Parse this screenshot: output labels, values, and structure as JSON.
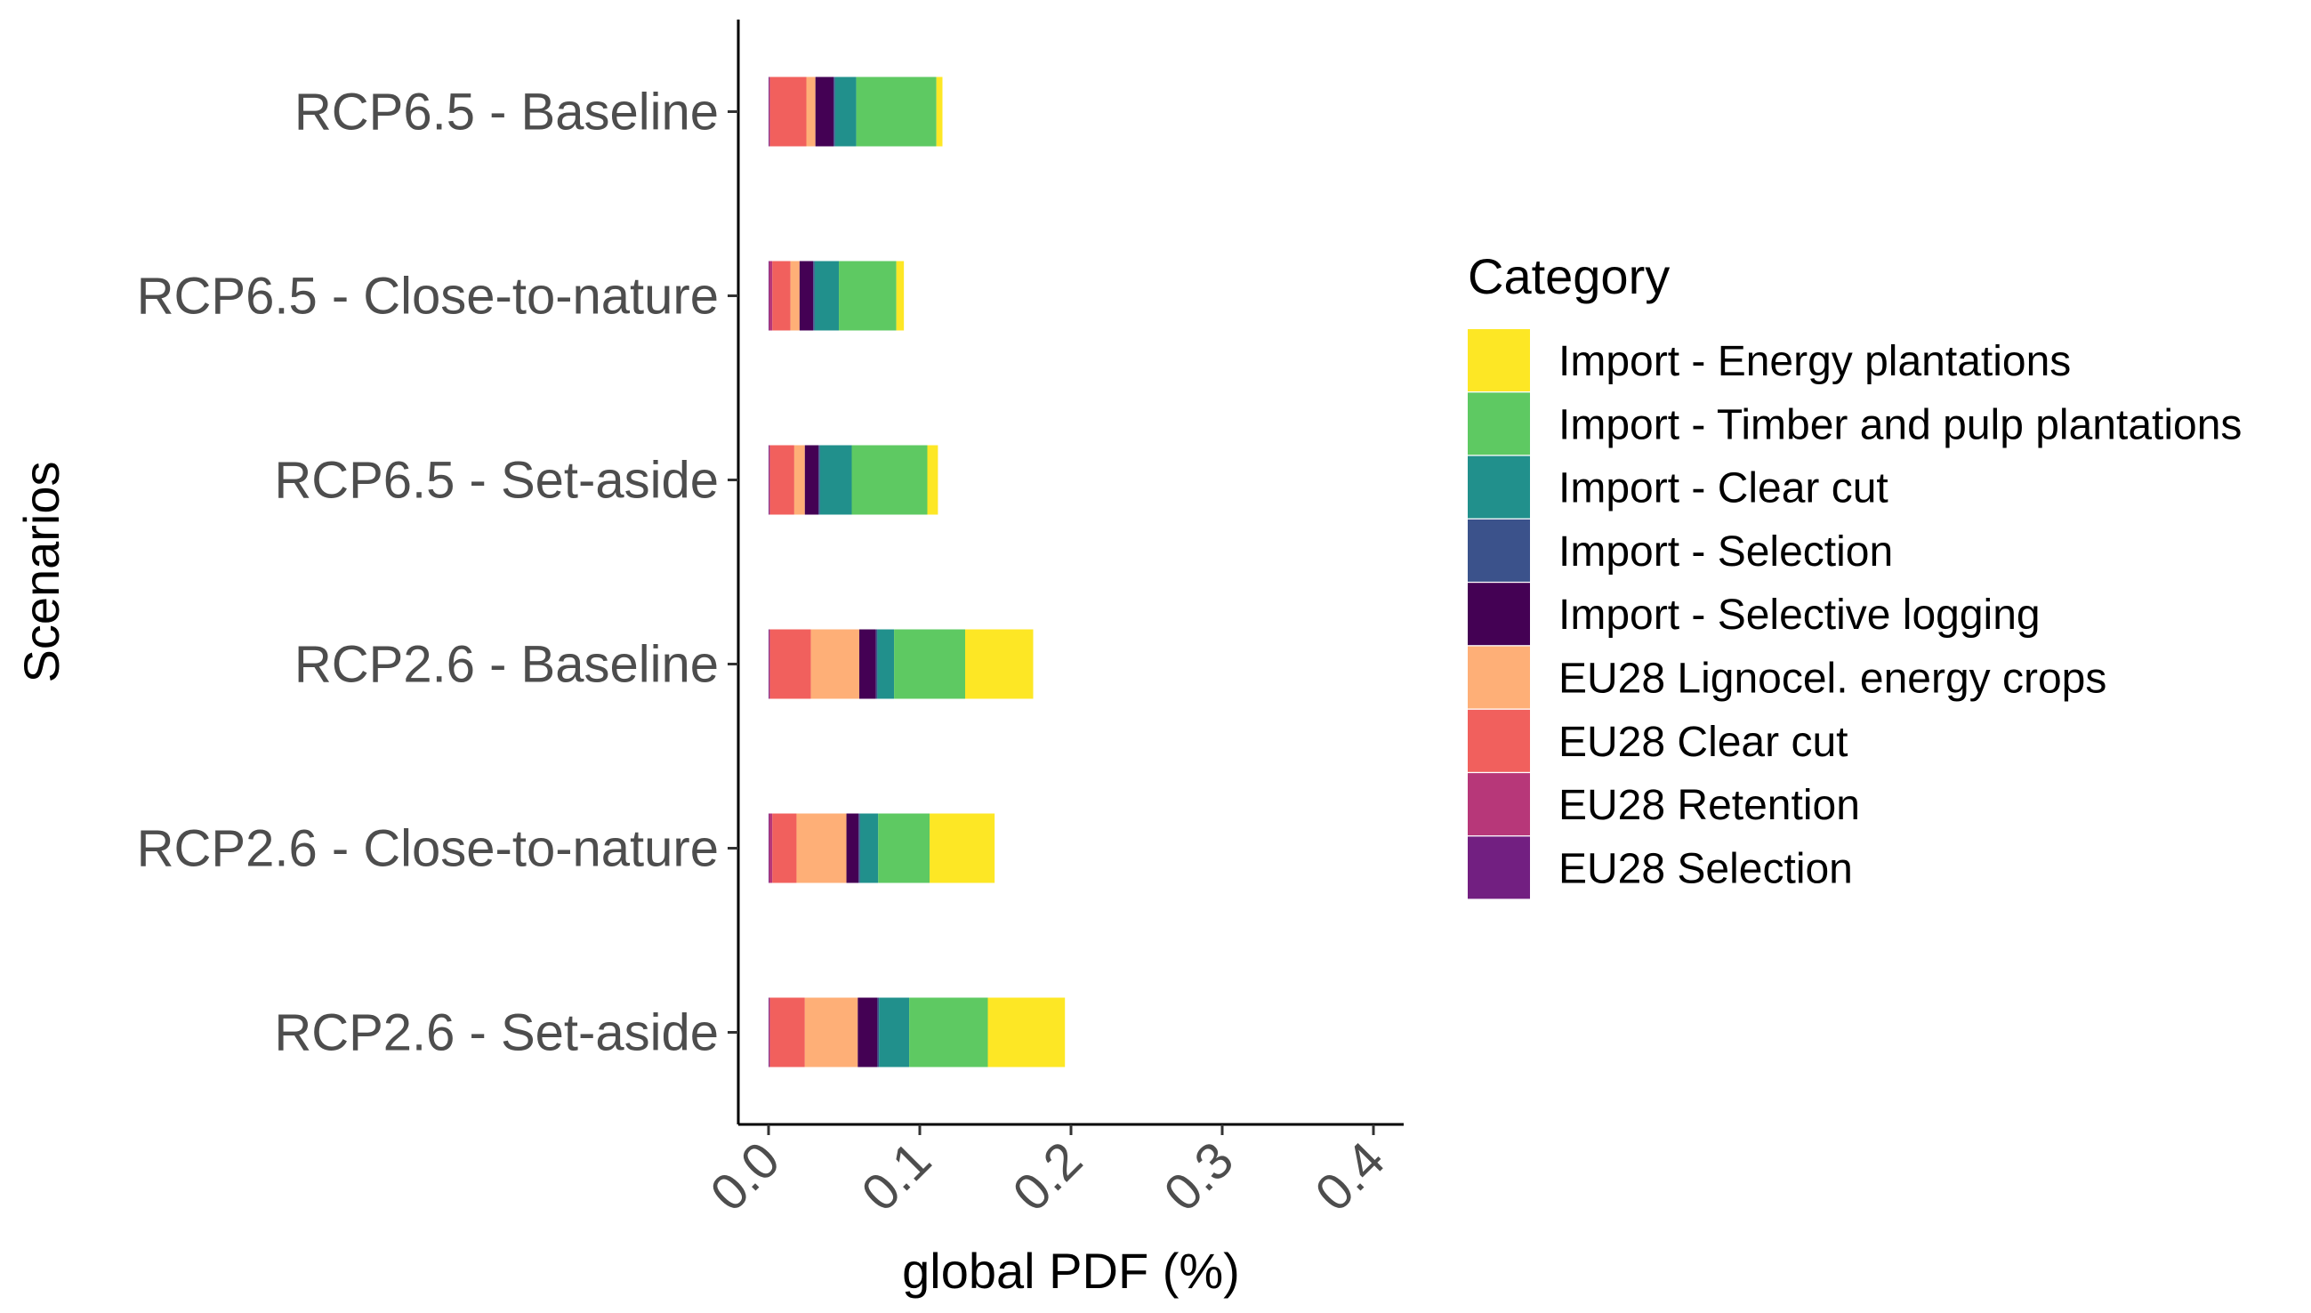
{
  "chart_data": {
    "type": "bar",
    "orientation": "horizontal",
    "stacked": true,
    "xlabel": "global PDF (%)",
    "ylabel": "Scenarios",
    "xlim": [
      -0.02,
      0.42
    ],
    "x_ticks": [
      0.0,
      0.1,
      0.2,
      0.3,
      0.4
    ],
    "x_tick_labels": [
      "0.0",
      "0.1",
      "0.2",
      "0.3",
      "0.4"
    ],
    "grid": false,
    "legend_position": "right",
    "categories": [
      "RCP6.5 - Baseline",
      "RCP6.5 - Close-to-nature",
      "RCP6.5 - Set-aside",
      "RCP2.6 - Baseline",
      "RCP2.6 - Close-to-nature",
      "RCP2.6 - Set-aside"
    ],
    "legend": {
      "title": "Category",
      "entries": [
        "Import - Energy plantations",
        "Import - Timber and pulp plantations",
        "Import - Clear cut",
        "Import - Selection",
        "Import - Selective logging",
        "EU28 Lignocel. energy crops",
        "EU28 Clear cut",
        "EU28 Retention",
        "EU28 Selection"
      ]
    },
    "series": [
      {
        "name": "EU28 Selection",
        "color": "#721f81",
        "values": [
          0.0005,
          0.0005,
          0.0005,
          0.0005,
          0.0005,
          0.0005
        ]
      },
      {
        "name": "EU28 Retention",
        "color": "#b73779",
        "values": [
          0.0005,
          0.002,
          0.0005,
          0.0005,
          0.002,
          0.0005
        ]
      },
      {
        "name": "EU28 Clear cut",
        "color": "#f1605d",
        "values": [
          0.024,
          0.012,
          0.016,
          0.027,
          0.016,
          0.023
        ]
      },
      {
        "name": "EU28 Lignocel. energy crops",
        "color": "#feaf77",
        "values": [
          0.006,
          0.006,
          0.007,
          0.032,
          0.033,
          0.035
        ]
      },
      {
        "name": "Import - Selective logging",
        "color": "#440154",
        "values": [
          0.012,
          0.009,
          0.009,
          0.011,
          0.008,
          0.013
        ]
      },
      {
        "name": "Import - Selection",
        "color": "#3b528b",
        "values": [
          0.001,
          0.001,
          0.001,
          0.001,
          0.001,
          0.001
        ]
      },
      {
        "name": "Import - Clear cut",
        "color": "#21908c",
        "values": [
          0.014,
          0.016,
          0.021,
          0.011,
          0.012,
          0.02
        ]
      },
      {
        "name": "Import - Timber and pulp plantations",
        "color": "#5ec962",
        "values": [
          0.053,
          0.038,
          0.05,
          0.047,
          0.034,
          0.052
        ]
      },
      {
        "name": "Import - Energy plantations",
        "color": "#fde725",
        "values": [
          0.004,
          0.005,
          0.007,
          0.045,
          0.043,
          0.051
        ]
      }
    ]
  }
}
